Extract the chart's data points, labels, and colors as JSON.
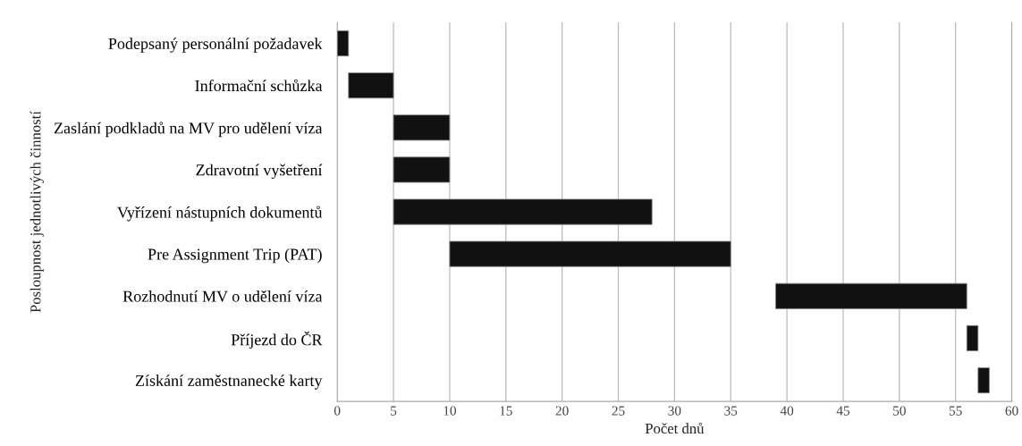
{
  "chart_data": {
    "type": "bar",
    "orientation": "horizontal",
    "categories": [
      "Podepsaný personální požadavek",
      "Informační schůzka",
      "Zaslání podkladů na MV pro udělení víza",
      "Zdravotní vyšetření",
      "Vyřízení nástupních dokumentů",
      "Pre Assignment Trip (PAT)",
      "Rozhodnutí MV o udělení víza",
      "Příjezd do ČR",
      "Získání zaměstnanecké karty"
    ],
    "base": [
      0,
      1,
      5,
      5,
      5,
      10,
      39,
      56,
      57
    ],
    "values": [
      1,
      4,
      5,
      5,
      23,
      25,
      17,
      1,
      1
    ],
    "color": "#111111",
    "xlim": [
      0,
      60
    ],
    "xticks": [
      0,
      5,
      10,
      15,
      20,
      25,
      30,
      35,
      40,
      45,
      50,
      55,
      60
    ],
    "grid": "x",
    "xlabel": "Počet dnů",
    "ylabel": "Posloupnost jednotlivých činností"
  }
}
